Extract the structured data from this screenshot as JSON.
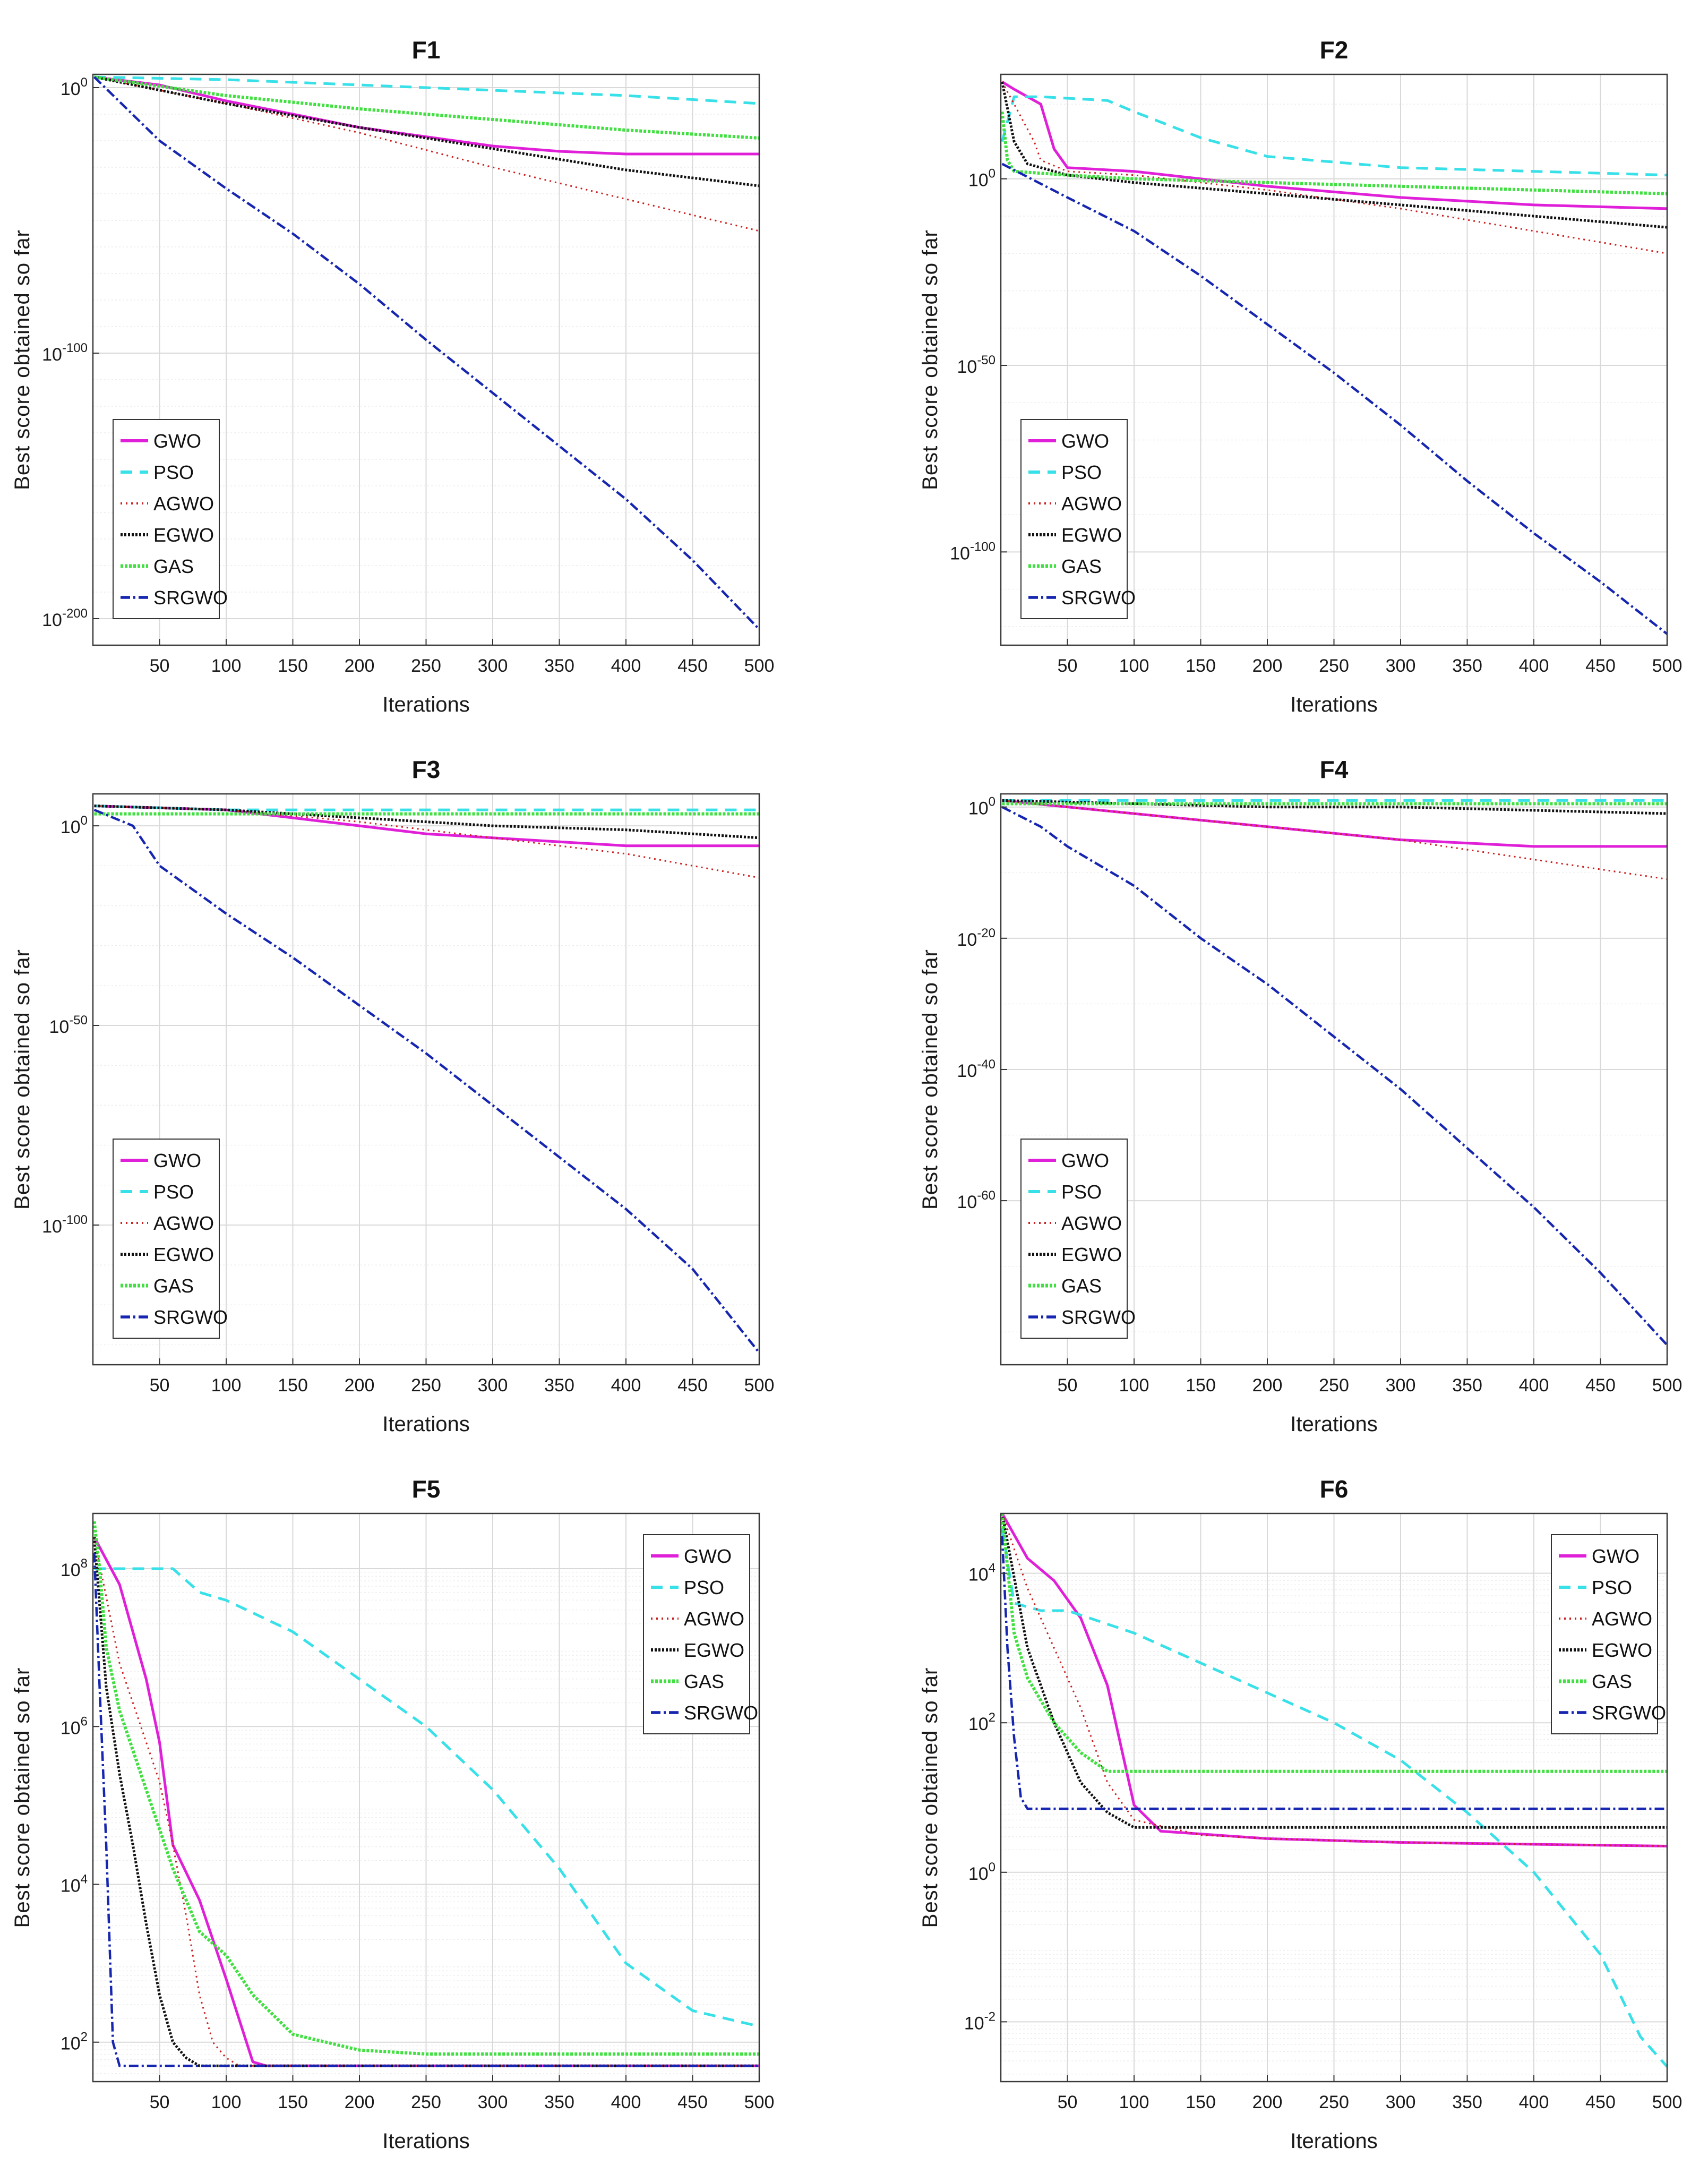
{
  "colors": {
    "GWO": "#e020d8",
    "PSO": "#38e0e8",
    "AGWO": "#cc1f1f",
    "EGWO": "#111111",
    "GAS": "#40e040",
    "SRGWO": "#1626b0"
  },
  "legend_labels": [
    "GWO",
    "PSO",
    "AGWO",
    "EGWO",
    "GAS",
    "SRGWO"
  ],
  "chart_data": [
    {
      "type": "line",
      "title": "F1",
      "xlabel": "Iterations",
      "ylabel": "Best score obtained so far",
      "yscale": "log",
      "xlim": [
        0,
        500
      ],
      "ylim_exp": [
        -210,
        5
      ],
      "x_ticks": [
        50,
        100,
        150,
        200,
        250,
        300,
        350,
        400,
        450,
        500
      ],
      "y_ticks": [
        {
          "base": "10",
          "exp": "0",
          "value_exp": 0
        },
        {
          "base": "10",
          "exp": "-100",
          "value_exp": -100
        },
        {
          "base": "10",
          "exp": "-200",
          "value_exp": -200
        }
      ],
      "legend_position": "lower-left",
      "series": [
        {
          "name": "GWO",
          "x": [
            1,
            50,
            100,
            200,
            300,
            350,
            400,
            450,
            500
          ],
          "log10_y": [
            4,
            1,
            -5,
            -15,
            -22,
            -24,
            -25,
            -25,
            -25
          ]
        },
        {
          "name": "PSO",
          "x": [
            1,
            100,
            200,
            300,
            400,
            500
          ],
          "log10_y": [
            4,
            3,
            1,
            -1,
            -3,
            -6
          ]
        },
        {
          "name": "AGWO",
          "x": [
            1,
            100,
            200,
            300,
            400,
            500
          ],
          "log10_y": [
            4,
            -6,
            -17,
            -30,
            -42,
            -54
          ]
        },
        {
          "name": "EGWO",
          "x": [
            1,
            100,
            200,
            300,
            400,
            500
          ],
          "log10_y": [
            4,
            -6,
            -15,
            -23,
            -31,
            -37
          ]
        },
        {
          "name": "GAS",
          "x": [
            1,
            100,
            200,
            300,
            400,
            500
          ],
          "log10_y": [
            4,
            -3,
            -8,
            -12,
            -16,
            -19
          ]
        },
        {
          "name": "SRGWO",
          "x": [
            1,
            50,
            100,
            150,
            200,
            250,
            300,
            350,
            400,
            450,
            500
          ],
          "log10_y": [
            4,
            -20,
            -38,
            -55,
            -74,
            -95,
            -115,
            -135,
            -155,
            -178,
            -204
          ]
        }
      ]
    },
    {
      "type": "line",
      "title": "F2",
      "xlabel": "Iterations",
      "ylabel": "Best score obtained so far",
      "yscale": "log",
      "xlim": [
        0,
        500
      ],
      "ylim_exp": [
        -125,
        28
      ],
      "x_ticks": [
        50,
        100,
        150,
        200,
        250,
        300,
        350,
        400,
        450,
        500
      ],
      "y_ticks": [
        {
          "base": "10",
          "exp": "0",
          "value_exp": 0
        },
        {
          "base": "10",
          "exp": "-50",
          "value_exp": -50
        },
        {
          "base": "10",
          "exp": "-100",
          "value_exp": -100
        }
      ],
      "legend_position": "lower-left",
      "series": [
        {
          "name": "GWO",
          "x": [
            1,
            10,
            30,
            40,
            50,
            100,
            200,
            300,
            400,
            500
          ],
          "log10_y": [
            26,
            24,
            20,
            8,
            3,
            2,
            -2,
            -5,
            -7,
            -8
          ]
        },
        {
          "name": "PSO",
          "x": [
            1,
            10,
            30,
            80,
            100,
            150,
            200,
            300,
            400,
            500
          ],
          "log10_y": [
            10,
            22,
            22,
            21,
            18,
            11,
            6,
            3,
            2,
            1
          ]
        },
        {
          "name": "AGWO",
          "x": [
            1,
            10,
            25,
            30,
            50,
            100,
            200,
            300,
            400,
            500
          ],
          "log10_y": [
            26,
            20,
            10,
            5,
            2,
            1,
            -3,
            -8,
            -14,
            -20
          ]
        },
        {
          "name": "EGWO",
          "x": [
            1,
            10,
            20,
            50,
            100,
            200,
            300,
            400,
            500
          ],
          "log10_y": [
            26,
            10,
            4,
            1,
            -1,
            -4,
            -7,
            -10,
            -13
          ]
        },
        {
          "name": "GAS",
          "x": [
            1,
            5,
            10,
            50,
            100,
            200,
            300,
            400,
            500
          ],
          "log10_y": [
            18,
            5,
            2,
            1,
            0,
            -1,
            -2,
            -3,
            -4
          ]
        },
        {
          "name": "SRGWO",
          "x": [
            1,
            50,
            100,
            150,
            200,
            250,
            300,
            350,
            400,
            450,
            500
          ],
          "log10_y": [
            4,
            -5,
            -14,
            -26,
            -39,
            -52,
            -66,
            -81,
            -95,
            -108,
            -122
          ]
        }
      ]
    },
    {
      "type": "line",
      "title": "F3",
      "xlabel": "Iterations",
      "ylabel": "Best score obtained so far",
      "yscale": "log",
      "xlim": [
        0,
        500
      ],
      "ylim_exp": [
        -135,
        8
      ],
      "x_ticks": [
        50,
        100,
        150,
        200,
        250,
        300,
        350,
        400,
        450,
        500
      ],
      "y_ticks": [
        {
          "base": "10",
          "exp": "0",
          "value_exp": 0
        },
        {
          "base": "10",
          "exp": "-50",
          "value_exp": -50
        },
        {
          "base": "10",
          "exp": "-100",
          "value_exp": -100
        }
      ],
      "legend_position": "lower-left",
      "series": [
        {
          "name": "GWO",
          "x": [
            1,
            100,
            200,
            250,
            300,
            350,
            400,
            450,
            500
          ],
          "log10_y": [
            5,
            4,
            0,
            -2,
            -3,
            -4,
            -5,
            -5,
            -5
          ]
        },
        {
          "name": "PSO",
          "x": [
            1,
            100,
            200,
            300,
            400,
            500
          ],
          "log10_y": [
            5,
            4,
            4,
            4,
            4,
            4
          ]
        },
        {
          "name": "AGWO",
          "x": [
            1,
            100,
            200,
            300,
            400,
            500
          ],
          "log10_y": [
            5,
            4,
            1,
            -3,
            -7,
            -13
          ]
        },
        {
          "name": "EGWO",
          "x": [
            1,
            100,
            200,
            300,
            400,
            500
          ],
          "log10_y": [
            5,
            4,
            2,
            0,
            -1,
            -3
          ]
        },
        {
          "name": "GAS",
          "x": [
            1,
            100,
            200,
            300,
            400,
            500
          ],
          "log10_y": [
            3,
            3,
            3,
            3,
            3,
            3
          ]
        },
        {
          "name": "SRGWO",
          "x": [
            1,
            30,
            50,
            100,
            150,
            200,
            250,
            300,
            350,
            400,
            450,
            500
          ],
          "log10_y": [
            4,
            0,
            -10,
            -22,
            -33,
            -45,
            -57,
            -70,
            -83,
            -96,
            -111,
            -132
          ]
        }
      ]
    },
    {
      "type": "line",
      "title": "F4",
      "xlabel": "Iterations",
      "ylabel": "Best score obtained so far",
      "yscale": "log",
      "xlim": [
        0,
        500
      ],
      "ylim_exp": [
        -85,
        2
      ],
      "x_ticks": [
        50,
        100,
        150,
        200,
        250,
        300,
        350,
        400,
        450,
        500
      ],
      "y_ticks": [
        {
          "base": "10",
          "exp": "0",
          "value_exp": 0
        },
        {
          "base": "10",
          "exp": "-20",
          "value_exp": -20
        },
        {
          "base": "10",
          "exp": "-40",
          "value_exp": -40
        },
        {
          "base": "10",
          "exp": "-60",
          "value_exp": -60
        }
      ],
      "legend_position": "lower-left",
      "series": [
        {
          "name": "GWO",
          "x": [
            1,
            100,
            200,
            300,
            400,
            450,
            500
          ],
          "log10_y": [
            1,
            -1,
            -3,
            -5,
            -6,
            -6,
            -6
          ]
        },
        {
          "name": "PSO",
          "x": [
            1,
            100,
            200,
            300,
            400,
            500
          ],
          "log10_y": [
            1,
            1,
            1,
            1,
            1,
            1
          ]
        },
        {
          "name": "AGWO",
          "x": [
            1,
            100,
            200,
            300,
            400,
            500
          ],
          "log10_y": [
            1,
            -1,
            -3,
            -5,
            -8,
            -11
          ]
        },
        {
          "name": "EGWO",
          "x": [
            1,
            100,
            200,
            300,
            400,
            500
          ],
          "log10_y": [
            1,
            0.5,
            0,
            0,
            -0.5,
            -1
          ]
        },
        {
          "name": "GAS",
          "x": [
            1,
            100,
            200,
            300,
            400,
            500
          ],
          "log10_y": [
            0.5,
            0.5,
            0.5,
            0.5,
            0.5,
            0.5
          ]
        },
        {
          "name": "SRGWO",
          "x": [
            1,
            30,
            50,
            100,
            150,
            200,
            250,
            300,
            350,
            400,
            450,
            500
          ],
          "log10_y": [
            0,
            -3,
            -6,
            -12,
            -20,
            -27,
            -35,
            -43,
            -52,
            -61,
            -71,
            -82
          ]
        }
      ]
    },
    {
      "type": "line",
      "title": "F5",
      "xlabel": "Iterations",
      "ylabel": "Best score obtained so far",
      "yscale": "log",
      "xlim": [
        0,
        500
      ],
      "ylim_exp": [
        1.5,
        8.7
      ],
      "x_ticks": [
        50,
        100,
        150,
        200,
        250,
        300,
        350,
        400,
        450,
        500
      ],
      "y_ticks": [
        {
          "base": "10",
          "exp": "2",
          "value_exp": 2
        },
        {
          "base": "10",
          "exp": "4",
          "value_exp": 4
        },
        {
          "base": "10",
          "exp": "6",
          "value_exp": 6
        },
        {
          "base": "10",
          "exp": "8",
          "value_exp": 8
        }
      ],
      "legend_position": "top-right",
      "series": [
        {
          "name": "GWO",
          "x": [
            1,
            20,
            40,
            50,
            60,
            80,
            100,
            120,
            130,
            500
          ],
          "log10_y": [
            8.4,
            7.8,
            6.6,
            5.8,
            4.5,
            3.8,
            2.8,
            1.75,
            1.7,
            1.7
          ]
        },
        {
          "name": "PSO",
          "x": [
            1,
            5,
            30,
            60,
            80,
            100,
            150,
            200,
            250,
            300,
            350,
            400,
            450,
            500
          ],
          "log10_y": [
            8.0,
            8.0,
            8.0,
            8.0,
            7.7,
            7.6,
            7.2,
            6.6,
            6.0,
            5.2,
            4.2,
            3.0,
            2.4,
            2.2
          ]
        },
        {
          "name": "AGWO",
          "x": [
            1,
            20,
            40,
            50,
            60,
            70,
            80,
            90,
            100,
            110,
            500
          ],
          "log10_y": [
            8.4,
            6.8,
            5.8,
            5.3,
            4.5,
            3.6,
            2.6,
            2.0,
            1.8,
            1.7,
            1.7
          ]
        },
        {
          "name": "EGWO",
          "x": [
            1,
            10,
            20,
            30,
            40,
            50,
            60,
            70,
            80,
            500
          ],
          "log10_y": [
            8.4,
            6.5,
            5.4,
            4.5,
            3.5,
            2.6,
            2.0,
            1.8,
            1.7,
            1.7
          ]
        },
        {
          "name": "GAS",
          "x": [
            1,
            5,
            10,
            20,
            40,
            60,
            80,
            100,
            120,
            150,
            200,
            250,
            500
          ],
          "log10_y": [
            8.6,
            8.0,
            7.0,
            6.2,
            5.2,
            4.2,
            3.4,
            3.1,
            2.6,
            2.1,
            1.9,
            1.85,
            1.85
          ]
        },
        {
          "name": "SRGWO",
          "x": [
            1,
            5,
            10,
            15,
            20,
            500
          ],
          "log10_y": [
            8.2,
            6.5,
            4.5,
            2.0,
            1.7,
            1.7
          ]
        }
      ]
    },
    {
      "type": "line",
      "title": "F6",
      "xlabel": "Iterations",
      "ylabel": "Best score obtained so far",
      "yscale": "log",
      "xlim": [
        0,
        500
      ],
      "ylim_exp": [
        -2.8,
        4.8
      ],
      "x_ticks": [
        50,
        100,
        150,
        200,
        250,
        300,
        350,
        400,
        450,
        500
      ],
      "y_ticks": [
        {
          "base": "10",
          "exp": "-2",
          "value_exp": -2
        },
        {
          "base": "10",
          "exp": "0",
          "value_exp": 0
        },
        {
          "base": "10",
          "exp": "2",
          "value_exp": 2
        },
        {
          "base": "10",
          "exp": "4",
          "value_exp": 4
        }
      ],
      "legend_position": "top-right",
      "series": [
        {
          "name": "GWO",
          "x": [
            1,
            20,
            40,
            60,
            80,
            90,
            100,
            120,
            200,
            300,
            500
          ],
          "log10_y": [
            4.8,
            4.2,
            3.9,
            3.4,
            2.5,
            1.7,
            0.9,
            0.55,
            0.45,
            0.4,
            0.35
          ]
        },
        {
          "name": "PSO",
          "x": [
            1,
            10,
            30,
            50,
            100,
            150,
            200,
            250,
            300,
            350,
            400,
            450,
            480,
            500
          ],
          "log10_y": [
            4.6,
            3.6,
            3.5,
            3.5,
            3.2,
            2.8,
            2.4,
            2.0,
            1.5,
            0.8,
            0.0,
            -1.1,
            -2.2,
            -2.6
          ]
        },
        {
          "name": "AGWO",
          "x": [
            1,
            20,
            40,
            60,
            80,
            100,
            150,
            200,
            300,
            500
          ],
          "log10_y": [
            4.8,
            3.8,
            3.0,
            2.2,
            1.2,
            0.7,
            0.5,
            0.45,
            0.4,
            0.35
          ]
        },
        {
          "name": "EGWO",
          "x": [
            1,
            20,
            40,
            60,
            80,
            100,
            150,
            200,
            500
          ],
          "log10_y": [
            4.8,
            3.0,
            2.0,
            1.2,
            0.8,
            0.6,
            0.6,
            0.6,
            0.6
          ]
        },
        {
          "name": "GAS",
          "x": [
            1,
            10,
            20,
            40,
            60,
            80,
            500
          ],
          "log10_y": [
            4.8,
            3.2,
            2.6,
            2.0,
            1.6,
            1.35,
            1.35
          ]
        },
        {
          "name": "SRGWO",
          "x": [
            1,
            5,
            10,
            15,
            20,
            500
          ],
          "log10_y": [
            4.5,
            3.0,
            1.8,
            1.0,
            0.85,
            0.85
          ]
        }
      ]
    }
  ]
}
